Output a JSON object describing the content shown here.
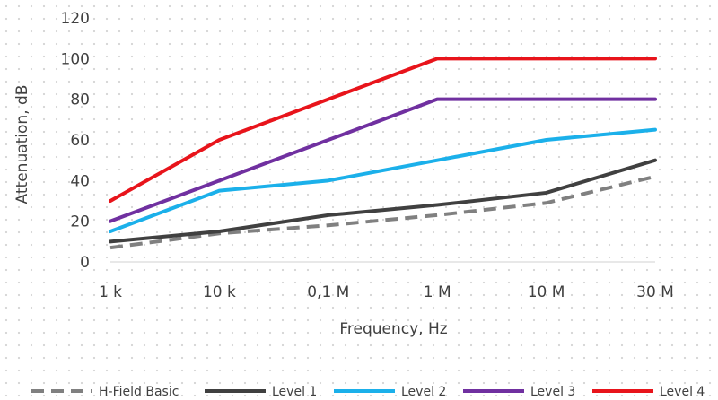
{
  "chart_data": {
    "type": "line",
    "xlabel": "Frequency, Hz",
    "ylabel": "Attenuation, dB",
    "categories": [
      "1 k",
      "10 k",
      "0,1 M",
      "1 M",
      "10 M",
      "30 M"
    ],
    "ylim": [
      0,
      120
    ],
    "yticks": [
      "0",
      "20",
      "40",
      "60",
      "80",
      "100",
      "120"
    ],
    "legend_position": "bottom",
    "grid": false,
    "series": [
      {
        "name": "H-Field Basic",
        "color": "#808080",
        "dashed": true,
        "values": [
          7,
          14,
          18,
          23,
          29,
          42
        ]
      },
      {
        "name": "Level 1",
        "color": "#404040",
        "dashed": false,
        "values": [
          10,
          15,
          23,
          28,
          34,
          50
        ]
      },
      {
        "name": "Level 2",
        "color": "#1BB0EA",
        "dashed": false,
        "values": [
          15,
          35,
          40,
          50,
          60,
          65
        ]
      },
      {
        "name": "Level 3",
        "color": "#7030A0",
        "dashed": false,
        "values": [
          20,
          40,
          60,
          80,
          80,
          80
        ]
      },
      {
        "name": "Level 4",
        "color": "#E8141B",
        "dashed": false,
        "values": [
          30,
          60,
          80,
          100,
          100,
          100
        ]
      }
    ]
  }
}
